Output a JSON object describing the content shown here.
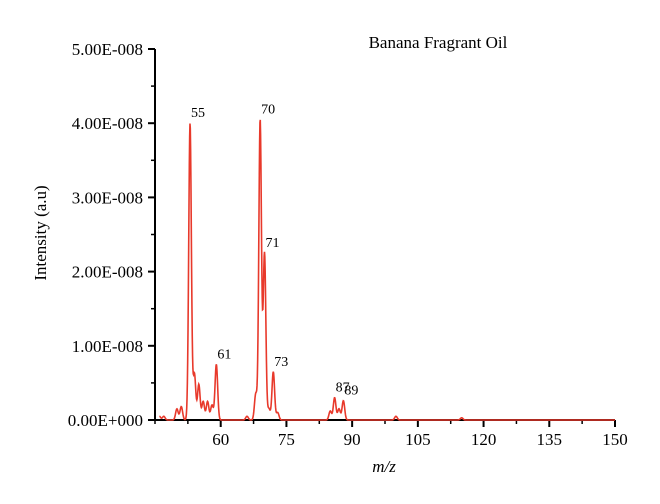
{
  "chart_data": {
    "type": "line",
    "title": "Banana Fragrant Oil",
    "xlabel": "m/z",
    "ylabel": "Intensity (a.u)",
    "xlim": [
      45,
      150
    ],
    "ylim": [
      0,
      5e-08
    ],
    "x_ticks": [
      60,
      75,
      90,
      105,
      120,
      135,
      150
    ],
    "x_tick_labels": [
      "60",
      "75",
      "90",
      "105",
      "120",
      "135",
      "150"
    ],
    "y_ticks": [
      0,
      1e-08,
      2e-08,
      3e-08,
      4e-08,
      5e-08
    ],
    "y_tick_labels": [
      "0.00E+000",
      "1.00E-008",
      "2.00E-008",
      "3.00E-008",
      "4.00E-008",
      "5.00E-008"
    ],
    "grid": false,
    "color": "#e8392b",
    "series": [
      {
        "peaks": [
          {
            "x": 46,
            "y": 5e-10
          },
          {
            "x": 47,
            "y": 5e-10
          },
          {
            "x": 50,
            "y": 1.5e-09
          },
          {
            "x": 51,
            "y": 1.8e-09
          },
          {
            "x": 53,
            "y": 4e-08
          },
          {
            "x": 54,
            "y": 6.2e-09
          },
          {
            "x": 55,
            "y": 4.8e-09
          },
          {
            "x": 56,
            "y": 2.5e-09
          },
          {
            "x": 57,
            "y": 2.5e-09
          },
          {
            "x": 58,
            "y": 2e-09
          },
          {
            "x": 59,
            "y": 7.5e-09
          },
          {
            "x": 66,
            "y": 5e-10
          },
          {
            "x": 68,
            "y": 3.5e-09
          },
          {
            "x": 69,
            "y": 4.05e-08
          },
          {
            "x": 70,
            "y": 2.25e-08
          },
          {
            "x": 71,
            "y": 1.5e-09
          },
          {
            "x": 72,
            "y": 6.5e-09
          },
          {
            "x": 73,
            "y": 1e-09
          },
          {
            "x": 85,
            "y": 1.2e-09
          },
          {
            "x": 86,
            "y": 3e-09
          },
          {
            "x": 87,
            "y": 1.5e-09
          },
          {
            "x": 88,
            "y": 2.6e-09
          },
          {
            "x": 100,
            "y": 5e-10
          },
          {
            "x": 115,
            "y": 3e-10
          }
        ]
      }
    ],
    "annotations": [
      {
        "text": "55",
        "x": 53,
        "y": 4e-08
      },
      {
        "text": "70",
        "x": 69,
        "y": 4.05e-08
      },
      {
        "text": "71",
        "x": 70,
        "y": 2.25e-08
      },
      {
        "text": "61",
        "x": 59,
        "y": 7.5e-09
      },
      {
        "text": "73",
        "x": 72,
        "y": 6.5e-09
      },
      {
        "text": "87",
        "x": 86,
        "y": 3e-09
      },
      {
        "text": "89",
        "x": 88,
        "y": 2.6e-09
      }
    ]
  }
}
